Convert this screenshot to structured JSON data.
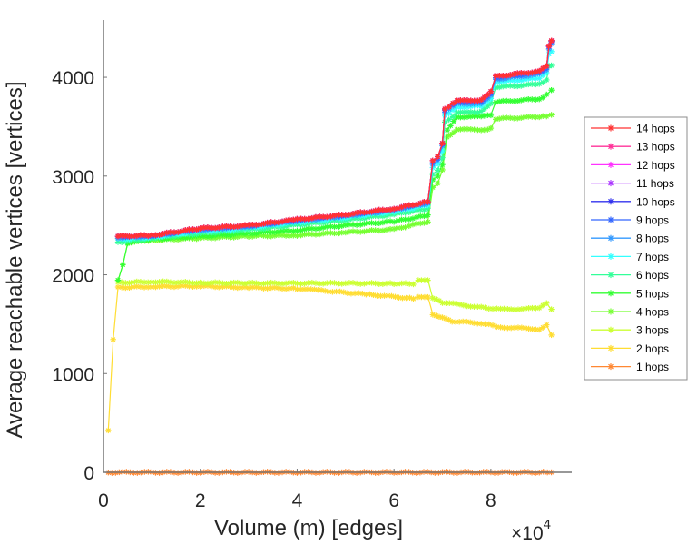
{
  "chart_data": {
    "type": "line",
    "title": "",
    "xlabel": "Volume (m) [edges]",
    "ylabel": "Average reachable vertices [vertices]",
    "x_exponent_label": "×10",
    "x_exponent_power": "4",
    "xlim": [
      0,
      9.67
    ],
    "ylim": [
      0,
      4580
    ],
    "xticks": [
      0,
      2,
      4,
      6,
      8
    ],
    "xtick_labels": [
      "0",
      "2",
      "4",
      "6",
      "8"
    ],
    "yticks": [
      0,
      1000,
      2000,
      3000,
      4000
    ],
    "ytick_labels": [
      "0",
      "1000",
      "2000",
      "3000",
      "4000"
    ],
    "grid": false,
    "legend_position": "right",
    "marker": "asterisk",
    "series": [
      {
        "name": "14 hops",
        "color": "#ff3333",
        "x": [
          0.3,
          1,
          2,
          3,
          4,
          5,
          6,
          6.7,
          6.8,
          6.9,
          7.0,
          7.05,
          7.3,
          7.8,
          8.0,
          8.1,
          9.0,
          9.15,
          9.2,
          9.25
        ],
        "y": [
          2390,
          2400,
          2470,
          2500,
          2560,
          2610,
          2670,
          2740,
          3150,
          3190,
          3330,
          3680,
          3760,
          3770,
          3850,
          4010,
          4060,
          4110,
          4320,
          4370
        ]
      },
      {
        "name": "13 hops",
        "color": "#ff3399",
        "x": [
          0.3,
          1,
          2,
          3,
          4,
          5,
          6,
          6.7,
          6.8,
          6.9,
          7.0,
          7.05,
          7.3,
          7.8,
          8.0,
          8.1,
          9.0,
          9.15,
          9.2,
          9.25
        ],
        "y": [
          2390,
          2400,
          2470,
          2500,
          2560,
          2610,
          2670,
          2740,
          3150,
          3190,
          3330,
          3680,
          3760,
          3770,
          3850,
          4010,
          4060,
          4110,
          4320,
          4370
        ]
      },
      {
        "name": "12 hops",
        "color": "#ff33ff",
        "x": [
          0.3,
          1,
          2,
          3,
          4,
          5,
          6,
          6.7,
          6.8,
          6.9,
          7.0,
          7.05,
          7.3,
          7.8,
          8.0,
          8.1,
          9.0,
          9.15,
          9.2,
          9.25
        ],
        "y": [
          2390,
          2400,
          2470,
          2500,
          2560,
          2610,
          2670,
          2740,
          3150,
          3190,
          3330,
          3680,
          3760,
          3770,
          3850,
          4010,
          4060,
          4110,
          4320,
          4370
        ]
      },
      {
        "name": "11 hops",
        "color": "#aa33ff",
        "x": [
          0.3,
          1,
          2,
          3,
          4,
          5,
          6,
          6.7,
          6.8,
          6.9,
          7.0,
          7.05,
          7.3,
          7.8,
          8.0,
          8.1,
          9.0,
          9.15,
          9.2,
          9.25
        ],
        "y": [
          2390,
          2400,
          2470,
          2500,
          2560,
          2610,
          2670,
          2740,
          3150,
          3190,
          3330,
          3680,
          3760,
          3770,
          3850,
          4010,
          4060,
          4110,
          4320,
          4370
        ]
      },
      {
        "name": "10 hops",
        "color": "#3333ee",
        "x": [
          0.3,
          1,
          2,
          3,
          4,
          5,
          6,
          6.7,
          6.8,
          6.9,
          7.0,
          7.05,
          7.3,
          7.8,
          8.0,
          8.1,
          9.0,
          9.15,
          9.2,
          9.25
        ],
        "y": [
          2390,
          2400,
          2470,
          2500,
          2560,
          2610,
          2670,
          2740,
          3150,
          3190,
          3330,
          3680,
          3760,
          3770,
          3850,
          4010,
          4060,
          4110,
          4320,
          4370
        ]
      },
      {
        "name": "9 hops",
        "color": "#3366ff",
        "x": [
          0.3,
          1,
          2,
          3,
          4,
          5,
          6,
          6.7,
          6.8,
          6.9,
          7.0,
          7.05,
          7.3,
          7.8,
          8.0,
          8.1,
          9.0,
          9.15,
          9.2,
          9.25
        ],
        "y": [
          2385,
          2395,
          2465,
          2495,
          2555,
          2605,
          2665,
          2735,
          3140,
          3180,
          3320,
          3670,
          3750,
          3760,
          3840,
          4000,
          4050,
          4100,
          4310,
          4360
        ]
      },
      {
        "name": "8 hops",
        "color": "#3399ff",
        "x": [
          0.3,
          1,
          2,
          3,
          4,
          5,
          6,
          6.7,
          6.8,
          6.9,
          7.0,
          7.05,
          7.3,
          7.8,
          8.0,
          8.1,
          9.0,
          9.15,
          9.2,
          9.25
        ],
        "y": [
          2375,
          2390,
          2455,
          2490,
          2545,
          2595,
          2655,
          2725,
          3120,
          3160,
          3300,
          3650,
          3730,
          3740,
          3820,
          3980,
          4030,
          4080,
          4280,
          4340
        ]
      },
      {
        "name": "7 hops",
        "color": "#33ffff",
        "x": [
          0.3,
          1,
          2,
          3,
          4,
          5,
          6,
          6.7,
          6.8,
          6.9,
          7.0,
          7.05,
          7.3,
          7.8,
          8.0,
          8.1,
          9.0,
          9.15,
          9.2,
          9.25
        ],
        "y": [
          2360,
          2380,
          2440,
          2475,
          2530,
          2580,
          2640,
          2705,
          3080,
          3120,
          3250,
          3610,
          3700,
          3710,
          3790,
          3950,
          3990,
          4040,
          4230,
          4260
        ]
      },
      {
        "name": "6 hops",
        "color": "#33ff99",
        "x": [
          0.3,
          1,
          2,
          3,
          4,
          5,
          6,
          6.7,
          6.8,
          6.9,
          7.0,
          7.05,
          7.3,
          7.8,
          8.0,
          8.1,
          9.0,
          9.15,
          9.2,
          9.25
        ],
        "y": [
          2330,
          2370,
          2420,
          2455,
          2505,
          2555,
          2610,
          2670,
          3020,
          3060,
          3180,
          3540,
          3640,
          3650,
          3730,
          3900,
          3930,
          3970,
          4120,
          4120
        ]
      },
      {
        "name": "5 hops",
        "color": "#33ff33",
        "x": [
          0.3,
          0.4,
          0.5,
          1,
          2,
          3,
          4,
          5,
          6,
          6.7,
          6.8,
          6.9,
          7.0,
          7.1,
          7.3,
          7.8,
          8.0,
          8.1,
          9.0,
          9.15,
          9.25
        ],
        "y": [
          1940,
          2100,
          2320,
          2360,
          2390,
          2420,
          2450,
          2500,
          2540,
          2600,
          2960,
          3000,
          3120,
          3470,
          3600,
          3600,
          3620,
          3750,
          3780,
          3820,
          3870
        ]
      },
      {
        "name": "4 hops",
        "color": "#77ff33",
        "x": [
          0.3,
          0.4,
          0.5,
          1,
          2,
          3,
          4,
          5,
          6,
          6.7,
          6.8,
          6.9,
          7.0,
          7.1,
          7.3,
          7.8,
          8.0,
          8.1,
          9.0,
          9.15,
          9.25
        ],
        "y": [
          1940,
          2100,
          2320,
          2350,
          2370,
          2390,
          2400,
          2430,
          2460,
          2540,
          2880,
          2920,
          3060,
          3400,
          3470,
          3470,
          3480,
          3580,
          3600,
          3610,
          3620
        ]
      },
      {
        "name": "3 hops",
        "color": "#ccff33",
        "x": [
          0.3,
          1,
          2,
          3,
          4,
          5,
          6,
          6.4,
          6.5,
          6.7,
          6.8,
          7.0,
          7.8,
          8.2,
          9.0,
          9.15,
          9.25
        ],
        "y": [
          1920,
          1930,
          1920,
          1915,
          1915,
          1915,
          1910,
          1910,
          1950,
          1950,
          1760,
          1720,
          1670,
          1650,
          1660,
          1710,
          1650
        ]
      },
      {
        "name": "2 hops",
        "color": "#ffdd33",
        "x": [
          0.1,
          0.2,
          0.3,
          1,
          2,
          3,
          4,
          4.5,
          5.5,
          6.4,
          6.5,
          6.7,
          6.8,
          7.0,
          7.2,
          7.8,
          8.2,
          9.0,
          9.15,
          9.25
        ],
        "y": [
          420,
          1340,
          1870,
          1880,
          1885,
          1870,
          1860,
          1840,
          1800,
          1760,
          1780,
          1780,
          1600,
          1570,
          1530,
          1510,
          1470,
          1450,
          1490,
          1390
        ]
      },
      {
        "name": "1 hops",
        "color": "#ff8833",
        "x": [
          0.1,
          1,
          2,
          3,
          4,
          5,
          6,
          7,
          8,
          9,
          9.25
        ],
        "y": [
          0,
          0,
          0,
          0,
          0,
          0,
          0,
          0,
          0,
          0,
          0
        ]
      }
    ]
  }
}
